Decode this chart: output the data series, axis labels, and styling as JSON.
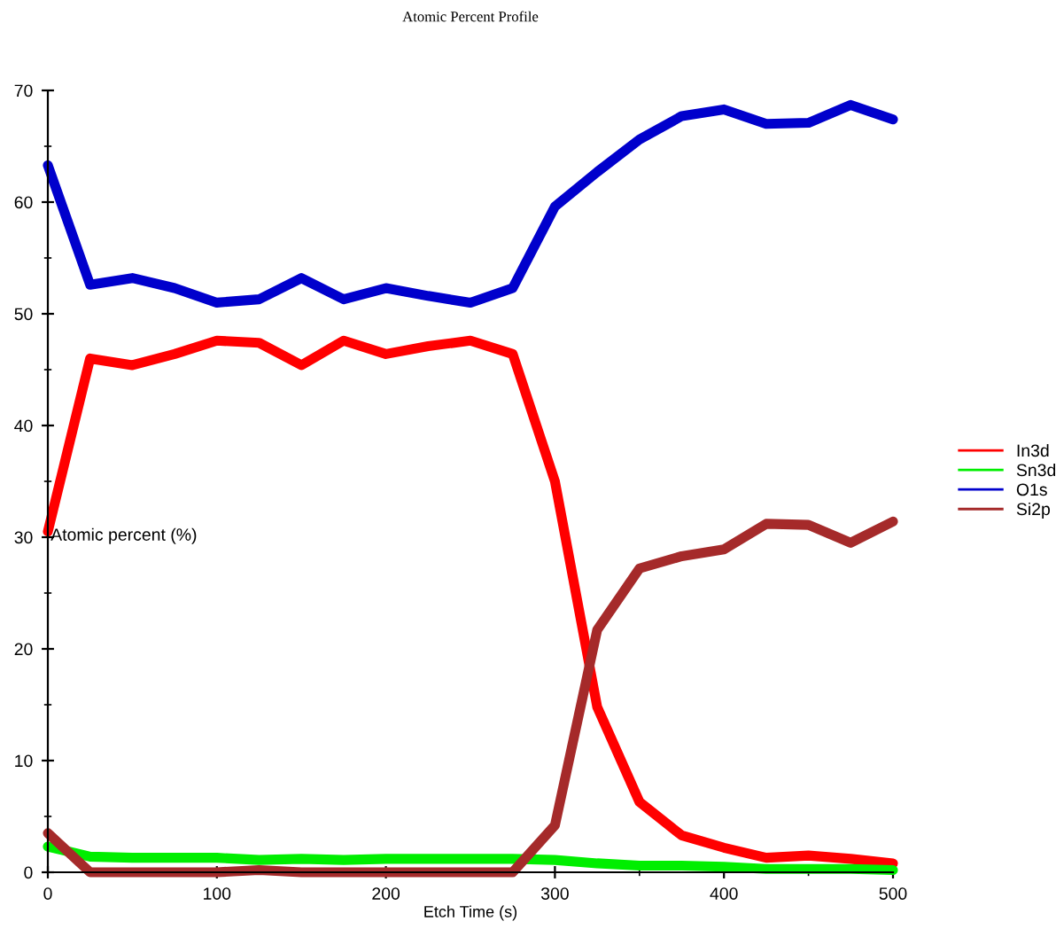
{
  "chart_data": {
    "type": "line",
    "title": "Atomic Percent Profile",
    "xlabel": "Etch Time (s)",
    "ylabel": "Atomic percent (%)",
    "x": [
      0,
      25,
      50,
      75,
      100,
      125,
      150,
      175,
      200,
      225,
      250,
      275,
      300,
      325,
      350,
      375,
      400,
      425,
      450,
      475,
      500
    ],
    "series": [
      {
        "name": "In3d",
        "color": "#ff0000",
        "values": [
          30.5,
          46.0,
          45.4,
          46.4,
          47.6,
          47.4,
          45.4,
          47.6,
          46.4,
          47.1,
          47.6,
          46.4,
          35.0,
          14.8,
          6.3,
          3.3,
          2.2,
          1.3,
          1.5,
          1.2,
          0.8
        ]
      },
      {
        "name": "Sn3d",
        "color": "#00ee00",
        "values": [
          2.3,
          1.4,
          1.3,
          1.3,
          1.3,
          1.1,
          1.2,
          1.1,
          1.2,
          1.2,
          1.2,
          1.2,
          1.1,
          0.8,
          0.6,
          0.6,
          0.5,
          0.3,
          0.3,
          0.3,
          0.2
        ]
      },
      {
        "name": "O1s",
        "color": "#0000cc",
        "values": [
          63.3,
          52.6,
          53.2,
          52.3,
          51.0,
          51.3,
          53.2,
          51.3,
          52.3,
          51.6,
          51.0,
          52.3,
          59.6,
          62.7,
          65.6,
          67.7,
          68.3,
          67.0,
          67.1,
          68.7,
          67.4
        ]
      },
      {
        "name": "Si2p",
        "color": "#a52a2a",
        "values": [
          3.5,
          0,
          0,
          0,
          0,
          0.2,
          0,
          0,
          0,
          0,
          0,
          0,
          4.2,
          21.7,
          27.2,
          28.3,
          28.9,
          31.2,
          31.1,
          29.5,
          31.4
        ]
      }
    ],
    "xlim": [
      0,
      500
    ],
    "xticks": [
      0,
      100,
      200,
      300,
      400,
      500
    ],
    "ylim": [
      0,
      70
    ],
    "yticks": [
      0,
      10,
      20,
      30,
      40,
      50,
      60,
      70
    ],
    "grid": false,
    "legend": "right",
    "marker": "none",
    "line_style": "solid"
  }
}
